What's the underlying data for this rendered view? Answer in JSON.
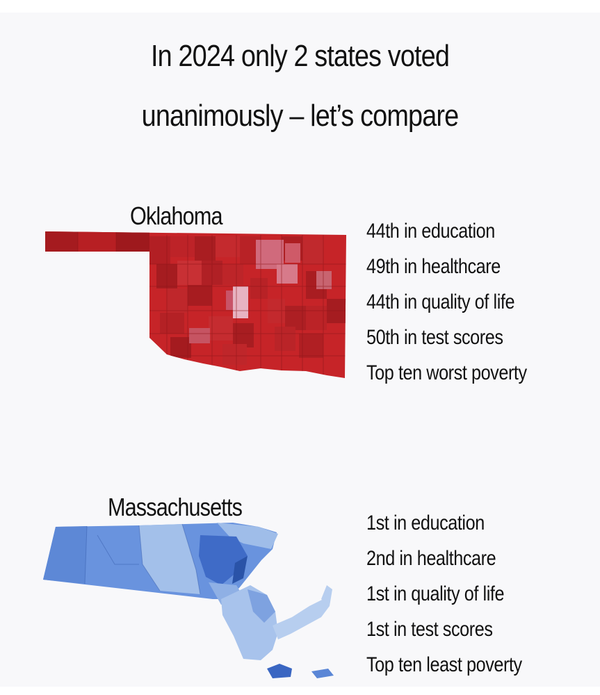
{
  "title": {
    "line1": "In 2024 only 2 states voted",
    "line2": "unanimously – let’s compare"
  },
  "states": [
    {
      "name": "Oklahoma",
      "color": "#c62025",
      "stats": [
        "44th in education",
        "49th in healthcare",
        "44th in quality of life",
        "50th in test scores",
        "Top ten worst poverty"
      ]
    },
    {
      "name": "Massachusetts",
      "color": "#4f7fd4",
      "stats": [
        "1st in education",
        "2nd in healthcare",
        "1st in quality of life",
        "1st in test scores",
        "Top ten least poverty"
      ]
    }
  ]
}
